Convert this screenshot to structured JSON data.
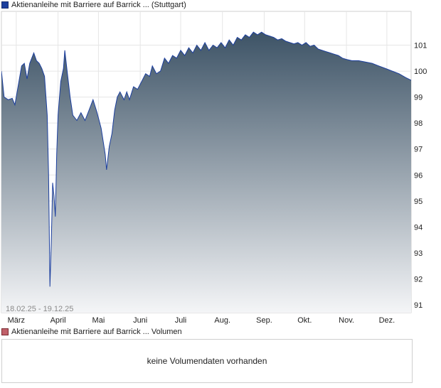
{
  "price_legend": {
    "label": "Aktienanleihe mit Barriere auf Barrick ... (Stuttgart)",
    "color": "#1c3f9e"
  },
  "volume_legend": {
    "label": "Aktienanleihe mit Barriere auf Barrick ... Volumen",
    "color": "#c0606a"
  },
  "volume_panel": {
    "message": "keine Volumendaten vorhanden"
  },
  "chart_data": {
    "type": "area",
    "date_range_label": "18.02.25 - 19.12.25",
    "x_start": "2025-02-18",
    "x_end": "2025-12-19",
    "ylim": [
      90.7,
      102.3
    ],
    "y_ticks": [
      91,
      92,
      93,
      94,
      95,
      96,
      97,
      98,
      99,
      100,
      101
    ],
    "grid": true,
    "x_ticks": [
      {
        "label": "März",
        "date": "2025-03-01"
      },
      {
        "label": "April",
        "date": "2025-04-01"
      },
      {
        "label": "Mai",
        "date": "2025-05-01"
      },
      {
        "label": "Juni",
        "date": "2025-06-01"
      },
      {
        "label": "Juli",
        "date": "2025-07-01"
      },
      {
        "label": "Aug.",
        "date": "2025-08-01"
      },
      {
        "label": "Sep.",
        "date": "2025-09-01"
      },
      {
        "label": "Okt.",
        "date": "2025-10-01"
      },
      {
        "label": "Nov.",
        "date": "2025-11-01"
      },
      {
        "label": "Dez.",
        "date": "2025-12-01"
      }
    ],
    "series": [
      {
        "line_color": "#1c3f9e",
        "fill_top": "#3d5366",
        "fill_bottom": "#f4f5f7",
        "points": [
          [
            "2025-02-18",
            100.0
          ],
          [
            "2025-02-20",
            99.0
          ],
          [
            "2025-02-23",
            98.9
          ],
          [
            "2025-02-26",
            98.95
          ],
          [
            "2025-02-28",
            98.7
          ],
          [
            "2025-03-03",
            99.6
          ],
          [
            "2025-03-05",
            100.2
          ],
          [
            "2025-03-07",
            100.3
          ],
          [
            "2025-03-09",
            99.7
          ],
          [
            "2025-03-11",
            100.3
          ],
          [
            "2025-03-14",
            100.7
          ],
          [
            "2025-03-16",
            100.4
          ],
          [
            "2025-03-18",
            100.3
          ],
          [
            "2025-03-20",
            100.1
          ],
          [
            "2025-03-22",
            99.8
          ],
          [
            "2025-03-24",
            98.3
          ],
          [
            "2025-03-25",
            96.0
          ],
          [
            "2025-03-26",
            91.7
          ],
          [
            "2025-03-27",
            93.4
          ],
          [
            "2025-03-28",
            95.7
          ],
          [
            "2025-03-29",
            95.2
          ],
          [
            "2025-03-30",
            94.4
          ],
          [
            "2025-03-31",
            96.8
          ],
          [
            "2025-04-01",
            98.3
          ],
          [
            "2025-04-03",
            99.6
          ],
          [
            "2025-04-05",
            100.1
          ],
          [
            "2025-04-06",
            100.8
          ],
          [
            "2025-04-08",
            99.9
          ],
          [
            "2025-04-10",
            99.0
          ],
          [
            "2025-04-12",
            98.3
          ],
          [
            "2025-04-15",
            98.1
          ],
          [
            "2025-04-18",
            98.4
          ],
          [
            "2025-04-21",
            98.1
          ],
          [
            "2025-04-24",
            98.5
          ],
          [
            "2025-04-27",
            98.9
          ],
          [
            "2025-04-30",
            98.4
          ],
          [
            "2025-05-03",
            97.8
          ],
          [
            "2025-05-06",
            96.8
          ],
          [
            "2025-05-07",
            96.2
          ],
          [
            "2025-05-09",
            97.1
          ],
          [
            "2025-05-11",
            97.6
          ],
          [
            "2025-05-13",
            98.5
          ],
          [
            "2025-05-15",
            99.0
          ],
          [
            "2025-05-17",
            99.2
          ],
          [
            "2025-05-20",
            98.9
          ],
          [
            "2025-05-22",
            99.2
          ],
          [
            "2025-05-24",
            98.9
          ],
          [
            "2025-05-27",
            99.4
          ],
          [
            "2025-05-30",
            99.3
          ],
          [
            "2025-06-02",
            99.6
          ],
          [
            "2025-06-05",
            99.9
          ],
          [
            "2025-06-08",
            99.8
          ],
          [
            "2025-06-10",
            100.2
          ],
          [
            "2025-06-13",
            99.9
          ],
          [
            "2025-06-16",
            100.0
          ],
          [
            "2025-06-19",
            100.5
          ],
          [
            "2025-06-22",
            100.3
          ],
          [
            "2025-06-25",
            100.6
          ],
          [
            "2025-06-28",
            100.5
          ],
          [
            "2025-07-01",
            100.8
          ],
          [
            "2025-07-04",
            100.6
          ],
          [
            "2025-07-07",
            100.9
          ],
          [
            "2025-07-10",
            100.7
          ],
          [
            "2025-07-13",
            101.0
          ],
          [
            "2025-07-16",
            100.8
          ],
          [
            "2025-07-19",
            101.1
          ],
          [
            "2025-07-22",
            100.8
          ],
          [
            "2025-07-25",
            101.0
          ],
          [
            "2025-07-28",
            100.9
          ],
          [
            "2025-07-31",
            101.1
          ],
          [
            "2025-08-03",
            100.9
          ],
          [
            "2025-08-06",
            101.2
          ],
          [
            "2025-08-09",
            101.0
          ],
          [
            "2025-08-12",
            101.3
          ],
          [
            "2025-08-15",
            101.2
          ],
          [
            "2025-08-18",
            101.4
          ],
          [
            "2025-08-21",
            101.3
          ],
          [
            "2025-08-24",
            101.5
          ],
          [
            "2025-08-27",
            101.4
          ],
          [
            "2025-08-30",
            101.5
          ],
          [
            "2025-09-02",
            101.4
          ],
          [
            "2025-09-05",
            101.35
          ],
          [
            "2025-09-08",
            101.3
          ],
          [
            "2025-09-11",
            101.2
          ],
          [
            "2025-09-14",
            101.25
          ],
          [
            "2025-09-17",
            101.15
          ],
          [
            "2025-09-20",
            101.1
          ],
          [
            "2025-09-23",
            101.05
          ],
          [
            "2025-09-26",
            101.1
          ],
          [
            "2025-09-29",
            101.0
          ],
          [
            "2025-10-02",
            101.1
          ],
          [
            "2025-10-05",
            100.95
          ],
          [
            "2025-10-08",
            101.0
          ],
          [
            "2025-10-11",
            100.85
          ],
          [
            "2025-10-14",
            100.8
          ],
          [
            "2025-10-17",
            100.75
          ],
          [
            "2025-10-20",
            100.7
          ],
          [
            "2025-10-23",
            100.65
          ],
          [
            "2025-10-26",
            100.6
          ],
          [
            "2025-10-29",
            100.5
          ],
          [
            "2025-11-01",
            100.45
          ],
          [
            "2025-11-05",
            100.4
          ],
          [
            "2025-11-10",
            100.4
          ],
          [
            "2025-11-15",
            100.35
          ],
          [
            "2025-11-20",
            100.3
          ],
          [
            "2025-11-25",
            100.2
          ],
          [
            "2025-11-30",
            100.1
          ],
          [
            "2025-12-05",
            100.0
          ],
          [
            "2025-12-10",
            99.9
          ],
          [
            "2025-12-15",
            99.75
          ],
          [
            "2025-12-19",
            99.65
          ]
        ]
      }
    ]
  }
}
